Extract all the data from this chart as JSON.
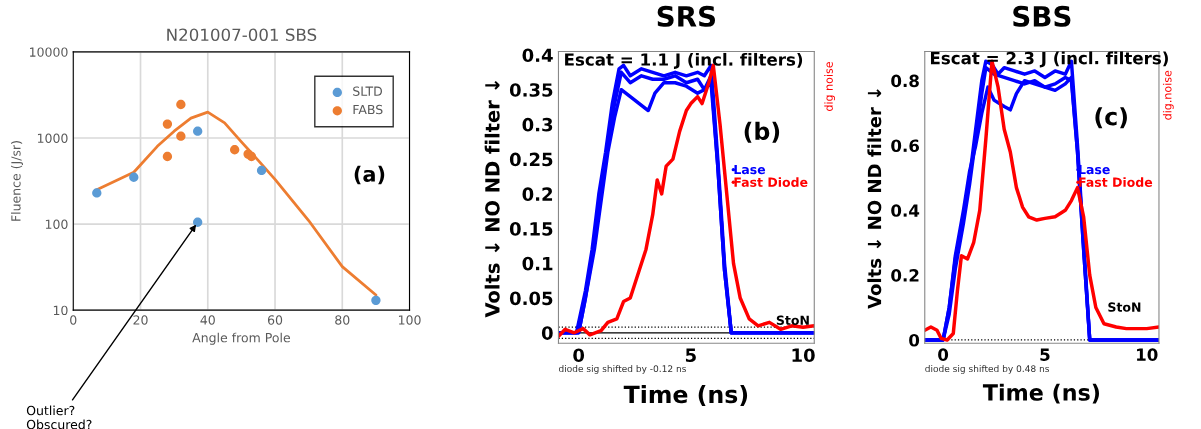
{
  "chart_data": [
    {
      "type": "scatter",
      "title": "N201007-001 SBS",
      "xlabel": "Angle from Pole",
      "ylabel": "Fluence (J/sr)",
      "log": "y",
      "xlim": [
        0,
        100
      ],
      "xticks": [
        0,
        20,
        40,
        60,
        80,
        100
      ],
      "ylim": [
        10,
        10000
      ],
      "yticks": [
        10,
        100,
        1000,
        10000
      ],
      "grid": true,
      "legend": "top right",
      "series": [
        {
          "type": "line",
          "marker": "none",
          "color": "#ed7d31",
          "x": [
            7,
            18,
            25,
            30,
            35,
            40,
            45,
            50,
            55,
            60,
            70,
            80,
            90
          ],
          "values": [
            250,
            400,
            800,
            1200,
            1700,
            2000,
            1500,
            900,
            550,
            330,
            110,
            32,
            15
          ]
        },
        {
          "name": "SLTD",
          "marker": "circle",
          "color": "#5b9bd5",
          "x": [
            7,
            18,
            37,
            37,
            56,
            90
          ],
          "values": [
            230,
            350,
            1200,
            105,
            420,
            13
          ]
        },
        {
          "name": "FABS",
          "marker": "circle",
          "color": "#ed7d31",
          "x": [
            28,
            28,
            32,
            32,
            48,
            52,
            53
          ],
          "values": [
            1450,
            610,
            2450,
            1050,
            730,
            650,
            610
          ]
        }
      ],
      "annotations": [
        "(a)",
        {
          "text": "Outlier?\nObscured?",
          "x": 37,
          "y": 105
        }
      ]
    },
    {
      "type": "line",
      "title": "SRS",
      "xlabel": "Time (ns)",
      "ylabel": "Volts ↓ NO ND filter ↓",
      "xlim": [
        -0.9,
        10.5
      ],
      "xticks": [
        0,
        5,
        10
      ],
      "ylim": [
        -0.015,
        0.405
      ],
      "yticks": [
        0,
        0.05,
        0.1,
        0.15,
        0.2,
        0.25,
        0.3,
        0.35,
        0.4
      ],
      "legend": "right",
      "series": [
        {
          "name": "Lase",
          "color": "#0000ff",
          "x": [
            -0.9,
            -0.1,
            0.3,
            0.6,
            0.9,
            1.2,
            1.5,
            1.8,
            2,
            2.3,
            2.8,
            3.3,
            3.8,
            4.3,
            4.8,
            5.3,
            5.6,
            5.9,
            6.2,
            6.5,
            6.8,
            10.5
          ],
          "values": [
            0,
            0,
            0.06,
            0.12,
            0.2,
            0.26,
            0.33,
            0.38,
            0.385,
            0.37,
            0.38,
            0.375,
            0.37,
            0.375,
            0.37,
            0.375,
            0.37,
            0.385,
            0.25,
            0.1,
            0,
            0
          ]
        },
        {
          "color": "#0000ff",
          "x": [
            -0.9,
            0,
            0.3,
            0.7,
            1,
            1.3,
            1.6,
            1.9,
            2.3,
            2.8,
            3.3,
            3.8,
            4.3,
            4.8,
            5.3,
            5.6,
            5.9,
            6.2,
            6.5,
            6.8,
            10.5
          ],
          "values": [
            0,
            0,
            0.05,
            0.13,
            0.2,
            0.27,
            0.33,
            0.375,
            0.36,
            0.37,
            0.365,
            0.365,
            0.37,
            0.36,
            0.365,
            0.35,
            0.37,
            0.24,
            0.09,
            0,
            0
          ]
        },
        {
          "color": "#0000ff",
          "x": [
            -0.9,
            0,
            0.3,
            0.7,
            1,
            1.3,
            1.6,
            1.9,
            2.3,
            2.7,
            3.1,
            3.4,
            3.8,
            4.3,
            4.8,
            5.3,
            5.6,
            5.9,
            6.2,
            6.5,
            6.8,
            10.5
          ],
          "values": [
            0,
            0,
            0.05,
            0.12,
            0.19,
            0.26,
            0.31,
            0.35,
            0.34,
            0.33,
            0.32,
            0.345,
            0.36,
            0.36,
            0.355,
            0.345,
            0.35,
            0.36,
            0.24,
            0.09,
            0,
            0
          ]
        },
        {
          "name": "Fast Diode",
          "color": "#ff0000",
          "x": [
            -0.9,
            -0.6,
            -0.2,
            0.2,
            0.5,
            1,
            1.3,
            1.7,
            2,
            2.3,
            2.7,
            3,
            3.3,
            3.5,
            3.7,
            3.9,
            4.2,
            4.5,
            4.8,
            5,
            5.3,
            5.5,
            5.8,
            6,
            6.3,
            6.6,
            6.9,
            7.2,
            7.6,
            8,
            8.5,
            9,
            9.5,
            10,
            10.5
          ],
          "values": [
            -0.005,
            0.005,
            0,
            0.006,
            -0.003,
            0.003,
            0.015,
            0.02,
            0.045,
            0.05,
            0.09,
            0.12,
            0.17,
            0.22,
            0.2,
            0.24,
            0.25,
            0.29,
            0.32,
            0.33,
            0.34,
            0.33,
            0.36,
            0.385,
            0.3,
            0.2,
            0.1,
            0.05,
            0.02,
            0.01,
            0.015,
            0.005,
            0.01,
            0.008,
            0.01
          ]
        }
      ],
      "ref_lines": [
        {
          "axis": "y",
          "value": 0,
          "color": "#000000",
          "line_style": "solid"
        },
        {
          "axis": "y",
          "value": 0.008,
          "color": "#000000",
          "line_style": "dotted"
        },
        {
          "axis": "y",
          "value": -0.008,
          "color": "#000000",
          "line_style": "dotted"
        }
      ],
      "annotations": [
        "Escat = 1.1 J (incl. filters)",
        "(b)",
        "dig noise",
        "StoN",
        "diode sig shifted by -0.12 ns"
      ]
    },
    {
      "type": "line",
      "title": "SBS",
      "xlabel": "Time (ns)",
      "ylabel": "Volts ↓ NO ND filter ↓",
      "xlim": [
        -0.9,
        10.6
      ],
      "xticks": [
        0,
        5,
        10
      ],
      "ylim": [
        -0.01,
        0.89
      ],
      "yticks": [
        0,
        0.2,
        0.4,
        0.6,
        0.8
      ],
      "legend": "right",
      "series": [
        {
          "name": "Lase",
          "color": "#0000ff",
          "x": [
            -0.9,
            0,
            0.3,
            0.6,
            1,
            1.3,
            1.6,
            1.9,
            2.1,
            2.4,
            2.7,
            3,
            3.5,
            4,
            4.5,
            5,
            5.5,
            6,
            6.3,
            6.6,
            6.9,
            7.2,
            10.6
          ],
          "values": [
            0,
            0,
            0.1,
            0.25,
            0.38,
            0.5,
            0.65,
            0.8,
            0.86,
            0.85,
            0.82,
            0.84,
            0.83,
            0.82,
            0.83,
            0.81,
            0.83,
            0.82,
            0.86,
            0.6,
            0.3,
            0,
            0
          ]
        },
        {
          "color": "#0000ff",
          "x": [
            -0.9,
            0,
            0.3,
            0.6,
            1,
            1.3,
            1.6,
            1.9,
            2.1,
            2.5,
            3,
            3.5,
            4,
            4.5,
            5,
            5.5,
            6,
            6.3,
            6.6,
            6.9,
            7.2,
            10.6
          ],
          "values": [
            0,
            0,
            0.08,
            0.22,
            0.36,
            0.48,
            0.62,
            0.76,
            0.84,
            0.82,
            0.81,
            0.8,
            0.79,
            0.8,
            0.78,
            0.79,
            0.81,
            0.8,
            0.58,
            0.28,
            0,
            0
          ]
        },
        {
          "color": "#0000ff",
          "x": [
            -0.9,
            0,
            0.3,
            0.6,
            1,
            1.3,
            1.6,
            1.9,
            2.2,
            2.5,
            3,
            3.3,
            3.6,
            4,
            4.5,
            5,
            5.5,
            6,
            6.3,
            6.6,
            6.9,
            7.2,
            10.6
          ],
          "values": [
            0,
            0,
            0.1,
            0.26,
            0.4,
            0.52,
            0.6,
            0.7,
            0.78,
            0.74,
            0.72,
            0.71,
            0.76,
            0.8,
            0.79,
            0.78,
            0.77,
            0.79,
            0.81,
            0.58,
            0.28,
            0,
            0
          ]
        },
        {
          "name": "Fast Diode",
          "color": "#ff0000",
          "x": [
            -0.9,
            -0.6,
            -0.3,
            -0.1,
            0.2,
            0.5,
            0.7,
            0.9,
            1.2,
            1.5,
            1.8,
            2.1,
            2.4,
            2.7,
            3,
            3.3,
            3.6,
            3.9,
            4.2,
            4.6,
            5,
            5.5,
            6,
            6.3,
            6.6,
            6.9,
            7.2,
            7.5,
            7.9,
            8.5,
            9,
            10,
            10.6
          ],
          "values": [
            0.03,
            0.04,
            0.03,
            0.005,
            0,
            0.02,
            0.15,
            0.26,
            0.25,
            0.3,
            0.4,
            0.62,
            0.86,
            0.78,
            0.65,
            0.58,
            0.47,
            0.41,
            0.38,
            0.37,
            0.375,
            0.38,
            0.4,
            0.43,
            0.47,
            0.38,
            0.2,
            0.1,
            0.05,
            0.04,
            0.035,
            0.035,
            0.04
          ]
        }
      ],
      "ref_lines": [
        {
          "axis": "y",
          "value": 0,
          "color": "#000000",
          "line_style": "dotted"
        }
      ],
      "annotations": [
        "Escat = 2.3 J (incl. filters)",
        "(c)",
        "dig.noise",
        "StoN",
        "diode sig shifted by 0.48 ns"
      ]
    }
  ]
}
